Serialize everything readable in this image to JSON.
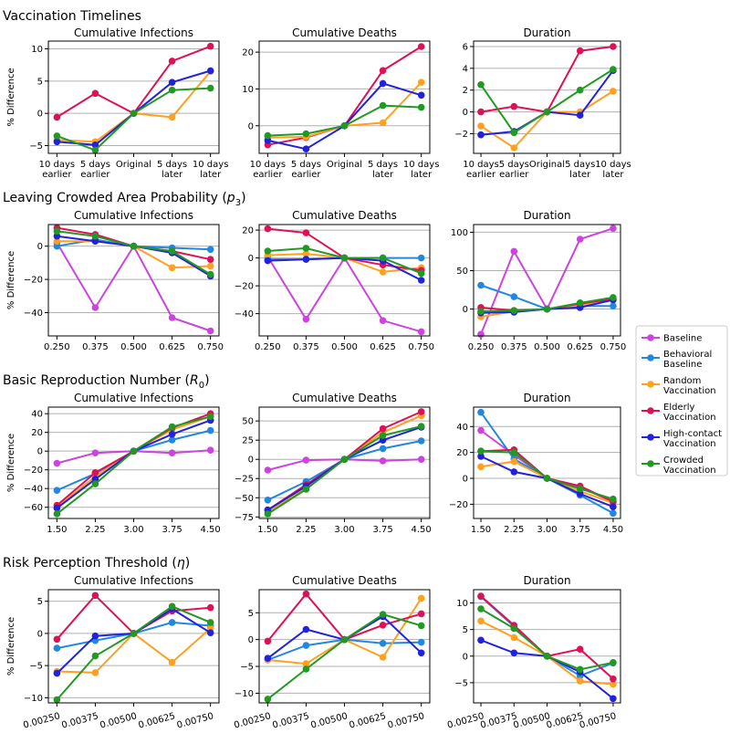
{
  "legend": [
    {
      "name": "Baseline",
      "color": "#cc44dd"
    },
    {
      "name": "Behavioral Baseline",
      "color": "#2288dd"
    },
    {
      "name": "Random Vaccination",
      "color": "#ffa020"
    },
    {
      "name": "Elderly Vaccination",
      "color": "#dd1155"
    },
    {
      "name": "High-contact Vaccination",
      "color": "#2222dd"
    },
    {
      "name": "Crowded Vaccination",
      "color": "#229922"
    }
  ],
  "chart_data": [
    {
      "section": "Vaccination Timelines",
      "ylabel": "% Difference",
      "tick_labels": [
        "10 days earlier",
        "5 days earlier",
        "Original",
        "5 days later",
        "10 days later"
      ],
      "panels": [
        {
          "title": "Cumulative Infections",
          "type": "line",
          "ylim": [
            -6.2,
            11.2
          ],
          "yticks": [
            -5,
            0,
            5,
            10
          ],
          "series": [
            {
              "name": "Elderly Vaccination",
              "values": [
                -0.6,
                3.1,
                0,
                8.1,
                10.4
              ]
            },
            {
              "name": "Random Vaccination",
              "values": [
                -4.1,
                -4.4,
                0,
                -0.6,
                6.5
              ]
            },
            {
              "name": "High-contact Vaccination",
              "values": [
                -4.4,
                -4.9,
                0,
                4.8,
                6.6
              ]
            },
            {
              "name": "Crowded Vaccination",
              "values": [
                -3.5,
                -5.7,
                0,
                3.6,
                3.9
              ]
            }
          ]
        },
        {
          "title": "Cumulative Deaths",
          "type": "line",
          "ylim": [
            -7.5,
            23
          ],
          "yticks": [
            0,
            10,
            20
          ],
          "series": [
            {
              "name": "Elderly Vaccination",
              "values": [
                -5.2,
                -3.2,
                0,
                15.0,
                21.5
              ]
            },
            {
              "name": "Random Vaccination",
              "values": [
                -3.2,
                -3.0,
                0,
                0.8,
                11.8
              ]
            },
            {
              "name": "High-contact Vaccination",
              "values": [
                -4.0,
                -6.3,
                0,
                11.5,
                8.3
              ]
            },
            {
              "name": "Crowded Vaccination",
              "values": [
                -2.7,
                -2.2,
                0,
                5.5,
                5.0
              ]
            }
          ]
        },
        {
          "title": "Duration",
          "type": "line",
          "ylim": [
            -3.8,
            6.5
          ],
          "yticks": [
            -2,
            0,
            2,
            4,
            6
          ],
          "series": [
            {
              "name": "Elderly Vaccination",
              "values": [
                0,
                0.5,
                0,
                5.6,
                6.0
              ]
            },
            {
              "name": "Random Vaccination",
              "values": [
                -1.3,
                -3.3,
                0,
                0,
                1.9
              ]
            },
            {
              "name": "High-contact Vaccination",
              "values": [
                -2.1,
                -1.8,
                0,
                -0.3,
                3.8
              ]
            },
            {
              "name": "Crowded Vaccination",
              "values": [
                2.5,
                -1.9,
                0,
                2.0,
                3.9
              ]
            }
          ]
        }
      ]
    },
    {
      "section": "Leaving Crowded Area Probability (",
      "section_symbol": "p",
      "section_sub": "3",
      "section_tail": ")",
      "ylabel": "% Difference",
      "tick_labels": [
        "0.250",
        "0.375",
        "0.500",
        "0.625",
        "0.750"
      ],
      "panels": [
        {
          "title": "Cumulative Infections",
          "type": "line",
          "ylim": [
            -54,
            13
          ],
          "yticks": [
            -40,
            -20,
            0
          ],
          "series": [
            {
              "name": "Baseline",
              "values": [
                2,
                -37,
                0,
                -43,
                -51
              ]
            },
            {
              "name": "Behavioral Baseline",
              "values": [
                0,
                4,
                0,
                -1,
                -2
              ]
            },
            {
              "name": "Random Vaccination",
              "values": [
                3,
                3,
                0,
                -13,
                -12
              ]
            },
            {
              "name": "Elderly Vaccination",
              "values": [
                11,
                7,
                0,
                -3,
                -8
              ]
            },
            {
              "name": "High-contact Vaccination",
              "values": [
                6,
                3,
                0,
                -4,
                -18
              ]
            },
            {
              "name": "Crowded Vaccination",
              "values": [
                9,
                6,
                0,
                -3,
                -17
              ]
            }
          ]
        },
        {
          "title": "Cumulative Deaths",
          "type": "line",
          "ylim": [
            -56,
            24
          ],
          "yticks": [
            -40,
            -20,
            0,
            20
          ],
          "series": [
            {
              "name": "Baseline",
              "values": [
                1,
                -44,
                0,
                -45,
                -53
              ]
            },
            {
              "name": "Behavioral Baseline",
              "values": [
                -1,
                -1,
                0,
                0,
                0
              ]
            },
            {
              "name": "Random Vaccination",
              "values": [
                2,
                3,
                0,
                -10,
                -7
              ]
            },
            {
              "name": "Elderly Vaccination",
              "values": [
                21,
                18,
                0,
                -5,
                -9
              ]
            },
            {
              "name": "High-contact Vaccination",
              "values": [
                -2,
                -1,
                0,
                -2,
                -16
              ]
            },
            {
              "name": "Crowded Vaccination",
              "values": [
                5,
                7,
                0,
                0,
                -11
              ]
            }
          ]
        },
        {
          "title": "Duration",
          "type": "line",
          "ylim": [
            -35,
            110
          ],
          "yticks": [
            0,
            50,
            100
          ],
          "series": [
            {
              "name": "Baseline",
              "values": [
                -33,
                75,
                0,
                91,
                105
              ]
            },
            {
              "name": "Behavioral Baseline",
              "values": [
                31,
                16,
                0,
                4,
                4
              ]
            },
            {
              "name": "Random Vaccination",
              "values": [
                -10,
                -3,
                0,
                5,
                12
              ]
            },
            {
              "name": "Elderly Vaccination",
              "values": [
                2,
                -2,
                0,
                7,
                13
              ]
            },
            {
              "name": "High-contact Vaccination",
              "values": [
                -5,
                -4,
                0,
                2,
                12
              ]
            },
            {
              "name": "Crowded Vaccination",
              "values": [
                -3,
                -2,
                0,
                8,
                15
              ]
            }
          ]
        }
      ]
    },
    {
      "section": "Basic Reproduction Number (",
      "section_symbol": "R",
      "section_sub": "0",
      "section_tail": ")",
      "ylabel": "% Difference",
      "tick_labels": [
        "1.50",
        "2.25",
        "3.00",
        "3.75",
        "4.50"
      ],
      "panels": [
        {
          "title": "Cumulative Infections",
          "type": "line",
          "ylim": [
            -72,
            47
          ],
          "yticks": [
            -60,
            -40,
            -20,
            0,
            20,
            40
          ],
          "series": [
            {
              "name": "Baseline",
              "values": [
                -13,
                -2,
                0,
                -2,
                1
              ]
            },
            {
              "name": "Behavioral Baseline",
              "values": [
                -42,
                -24,
                0,
                12,
                22
              ]
            },
            {
              "name": "Random Vaccination",
              "values": [
                -60,
                -27,
                0,
                23,
                37
              ]
            },
            {
              "name": "Elderly Vaccination",
              "values": [
                -58,
                -23,
                0,
                25,
                40
              ]
            },
            {
              "name": "High-contact Vaccination",
              "values": [
                -61,
                -30,
                0,
                18,
                33
              ]
            },
            {
              "name": "Crowded Vaccination",
              "values": [
                -67,
                -35,
                0,
                26,
                37
              ]
            }
          ]
        },
        {
          "title": "Cumulative Deaths",
          "type": "line",
          "ylim": [
            -77,
            68
          ],
          "yticks": [
            -75,
            -50,
            -25,
            0,
            25,
            50
          ],
          "series": [
            {
              "name": "Baseline",
              "values": [
                -14,
                -1,
                0,
                -2,
                0
              ]
            },
            {
              "name": "Behavioral Baseline",
              "values": [
                -53,
                -29,
                0,
                14,
                24
              ]
            },
            {
              "name": "Random Vaccination",
              "values": [
                -68,
                -37,
                0,
                35,
                57
              ]
            },
            {
              "name": "Elderly Vaccination",
              "values": [
                -66,
                -33,
                0,
                40,
                62
              ]
            },
            {
              "name": "High-contact Vaccination",
              "values": [
                -66,
                -35,
                0,
                25,
                42
              ]
            },
            {
              "name": "Crowded Vaccination",
              "values": [
                -71,
                -39,
                0,
                31,
                43
              ]
            }
          ]
        },
        {
          "title": "Duration",
          "type": "line",
          "ylim": [
            -31,
            55
          ],
          "yticks": [
            -20,
            0,
            20,
            40
          ],
          "series": [
            {
              "name": "Baseline",
              "values": [
                37,
                18,
                0,
                -7,
                -18
              ]
            },
            {
              "name": "Behavioral Baseline",
              "values": [
                51,
                15,
                0,
                -13,
                -27
              ]
            },
            {
              "name": "Random Vaccination",
              "values": [
                9,
                13,
                0,
                -10,
                -19
              ]
            },
            {
              "name": "Elderly Vaccination",
              "values": [
                21,
                22,
                0,
                -6,
                -18
              ]
            },
            {
              "name": "High-contact Vaccination",
              "values": [
                17,
                5,
                0,
                -12,
                -22
              ]
            },
            {
              "name": "Crowded Vaccination",
              "values": [
                21,
                20,
                0,
                -8,
                -16
              ]
            }
          ]
        }
      ]
    },
    {
      "section": "Risk Perception Threshold (",
      "section_symbol": "η",
      "section_sub": "",
      "section_tail": ")",
      "ylabel": "% Difference",
      "tick_labels": [
        "0.00250",
        "0.00375",
        "0.00500",
        "0.00625",
        "0.00750"
      ],
      "rotate_ticks": true,
      "panels": [
        {
          "title": "Cumulative Infections",
          "type": "line",
          "ylim": [
            -10.8,
            6.8
          ],
          "yticks": [
            -10,
            -5,
            0,
            5
          ],
          "series": [
            {
              "name": "Behavioral Baseline",
              "values": [
                -2.3,
                -1.1,
                0,
                1.7,
                1.2
              ]
            },
            {
              "name": "Random Vaccination",
              "values": [
                -5.9,
                -6.1,
                0,
                -4.5,
                0.8
              ]
            },
            {
              "name": "Elderly Vaccination",
              "values": [
                -0.9,
                5.9,
                0,
                3.5,
                4.0
              ]
            },
            {
              "name": "High-contact Vaccination",
              "values": [
                -6.2,
                -0.4,
                0,
                3.8,
                0.1
              ]
            },
            {
              "name": "Crowded Vaccination",
              "values": [
                -10.3,
                -3.5,
                0,
                4.2,
                1.7
              ]
            }
          ]
        },
        {
          "title": "Cumulative Deaths",
          "type": "line",
          "ylim": [
            -11.8,
            9.3
          ],
          "yticks": [
            -10,
            -5,
            0,
            5
          ],
          "series": [
            {
              "name": "Behavioral Baseline",
              "values": [
                -3.8,
                -1.1,
                0,
                -0.7,
                -0.5
              ]
            },
            {
              "name": "Random Vaccination",
              "values": [
                -3.8,
                -4.5,
                0,
                -3.3,
                7.7
              ]
            },
            {
              "name": "Elderly Vaccination",
              "values": [
                -0.3,
                8.5,
                0,
                2.7,
                4.8
              ]
            },
            {
              "name": "High-contact Vaccination",
              "values": [
                -3.5,
                1.9,
                0,
                4.3,
                -2.5
              ]
            },
            {
              "name": "Crowded Vaccination",
              "values": [
                -11.1,
                -5.5,
                0,
                4.7,
                2.6
              ]
            }
          ]
        },
        {
          "title": "Duration",
          "type": "line",
          "ylim": [
            -8.8,
            12.5
          ],
          "yticks": [
            -5,
            0,
            5,
            10
          ],
          "series": [
            {
              "name": "Behavioral Baseline",
              "values": [
                11.2,
                5.6,
                0,
                -3.7,
                -1.3
              ]
            },
            {
              "name": "Random Vaccination",
              "values": [
                6.6,
                3.5,
                0,
                -4.7,
                -5.3
              ]
            },
            {
              "name": "Elderly Vaccination",
              "values": [
                11.3,
                5.8,
                0,
                1.3,
                -4.3
              ]
            },
            {
              "name": "High-contact Vaccination",
              "values": [
                3.0,
                0.6,
                0,
                -3.0,
                -8.0
              ]
            },
            {
              "name": "Crowded Vaccination",
              "values": [
                8.9,
                5.2,
                0,
                -2.5,
                -1.2
              ]
            }
          ]
        }
      ]
    }
  ]
}
